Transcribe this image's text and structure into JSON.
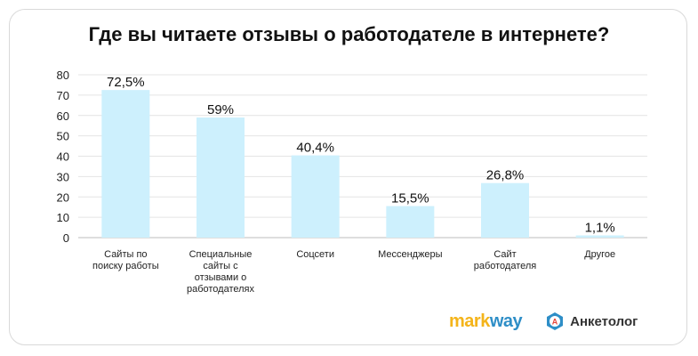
{
  "chart_data": {
    "type": "bar",
    "title": "Где вы читаете отзывы о работодателе в интернете?",
    "categories": [
      [
        "Сайты по",
        "поиску работы"
      ],
      [
        "Специальные",
        "сайты с",
        "отзывами о",
        "работодателях"
      ],
      [
        "Соцсети"
      ],
      [
        "Мессенджеры"
      ],
      [
        "Сайт",
        "работодателя"
      ],
      [
        "Другое"
      ]
    ],
    "values": [
      72.5,
      59,
      40.4,
      15.5,
      26.8,
      1.1
    ],
    "data_labels": [
      "72,5%",
      "59%",
      "40,4%",
      "15,5%",
      "26,8%",
      "1,1%"
    ],
    "ylim": [
      0,
      80
    ],
    "yticks": [
      0,
      10,
      20,
      30,
      40,
      50,
      60,
      70,
      80
    ],
    "grid": true,
    "bar_color": "#cdf0fd"
  },
  "logos": {
    "markway_part1": "mark",
    "markway_part2": "way",
    "anketolog": "Анкетолог",
    "anketolog_icon_letter": "А"
  }
}
